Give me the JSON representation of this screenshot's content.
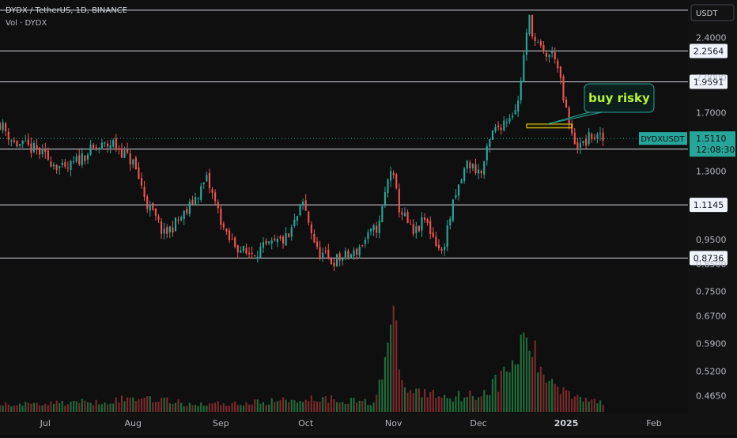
{
  "header": {
    "symbol_line": "DYDX / TetherUS, 1D, BINANCE",
    "volume_line": "Vol · DYDX"
  },
  "price_axis": {
    "currency": "USDT",
    "labels": [
      "2.4000",
      "2.0000",
      "1.7000",
      "1.3000",
      "0.9500",
      "0.8500",
      "0.7500",
      "0.6700",
      "0.5900",
      "0.5200",
      "0.4650"
    ]
  },
  "time_axis": {
    "labels": [
      "Jul",
      "Aug",
      "Sep",
      "Oct",
      "Nov",
      "Dec",
      "2025",
      "Feb"
    ]
  },
  "chart_data": {
    "type": "candlestick",
    "title": "DYDX / TetherUS, 1D, BINANCE",
    "y_scale": "log",
    "ylim": [
      0.43,
      2.85
    ],
    "x_range": [
      "2024-06-15",
      "2025-02-13"
    ],
    "horizontal_levels": [
      {
        "label": "2.2564",
        "value": 2.2564
      },
      {
        "label": "1.9591",
        "value": 1.9591
      },
      {
        "label": "1.4396",
        "value": 1.4396
      },
      {
        "label": "1.1145",
        "value": 1.1145
      },
      {
        "label": "0.8736",
        "value": 0.8736
      }
    ],
    "top_level_value": 2.72,
    "current_price": {
      "symbol": "DYDXUSDT",
      "value": "1.5110",
      "countdown": "12:08:30",
      "numeric": 1.511
    },
    "annotation": {
      "text": "buy risky",
      "zone_low": 1.586,
      "zone_high": 1.614,
      "zone_start": "2024-12-18",
      "zone_end": "2025-01-03"
    },
    "volume_scale_max": 100,
    "candle_anchors": [
      {
        "date": "2024-06-15",
        "close": 1.62
      },
      {
        "date": "2024-06-20",
        "close": 1.48
      },
      {
        "date": "2024-06-28",
        "close": 1.43
      },
      {
        "date": "2024-07-08",
        "close": 1.3
      },
      {
        "date": "2024-07-16",
        "close": 1.42
      },
      {
        "date": "2024-07-25",
        "close": 1.48
      },
      {
        "date": "2024-08-01",
        "close": 1.35
      },
      {
        "date": "2024-08-06",
        "close": 1.12
      },
      {
        "date": "2024-08-12",
        "close": 0.97
      },
      {
        "date": "2024-08-20",
        "close": 1.08
      },
      {
        "date": "2024-08-27",
        "close": 1.25
      },
      {
        "date": "2024-09-03",
        "close": 0.96
      },
      {
        "date": "2024-09-10",
        "close": 0.89
      },
      {
        "date": "2024-09-18",
        "close": 0.92
      },
      {
        "date": "2024-09-25",
        "close": 0.96
      },
      {
        "date": "2024-09-30",
        "close": 1.12
      },
      {
        "date": "2024-10-05",
        "close": 0.9
      },
      {
        "date": "2024-10-10",
        "close": 0.86
      },
      {
        "date": "2024-10-18",
        "close": 0.89
      },
      {
        "date": "2024-10-27",
        "close": 1.02
      },
      {
        "date": "2024-10-31",
        "close": 1.32
      },
      {
        "date": "2024-11-03",
        "close": 1.1
      },
      {
        "date": "2024-11-08",
        "close": 0.97
      },
      {
        "date": "2024-11-12",
        "close": 1.04
      },
      {
        "date": "2024-11-18",
        "close": 0.89
      },
      {
        "date": "2024-11-22",
        "close": 1.11
      },
      {
        "date": "2024-11-27",
        "close": 1.35
      },
      {
        "date": "2024-12-02",
        "close": 1.29
      },
      {
        "date": "2024-12-06",
        "close": 1.55
      },
      {
        "date": "2024-12-12",
        "close": 1.68
      },
      {
        "date": "2024-12-15",
        "close": 1.78
      },
      {
        "date": "2024-12-19",
        "close": 2.62
      },
      {
        "date": "2024-12-21",
        "close": 2.35
      },
      {
        "date": "2024-12-24",
        "close": 2.22
      },
      {
        "date": "2024-12-28",
        "close": 2.22
      },
      {
        "date": "2024-12-31",
        "close": 1.8
      },
      {
        "date": "2025-01-03",
        "close": 1.52
      },
      {
        "date": "2025-01-06",
        "close": 1.45
      },
      {
        "date": "2025-01-10",
        "close": 1.53
      },
      {
        "date": "2025-01-14",
        "close": 1.5
      }
    ],
    "volume_anchors": [
      {
        "date": "2024-06-15",
        "volume": 8
      },
      {
        "date": "2024-07-01",
        "volume": 10
      },
      {
        "date": "2024-07-20",
        "volume": 12
      },
      {
        "date": "2024-08-06",
        "volume": 17
      },
      {
        "date": "2024-08-20",
        "volume": 9
      },
      {
        "date": "2024-09-10",
        "volume": 10
      },
      {
        "date": "2024-10-05",
        "volume": 16
      },
      {
        "date": "2024-10-25",
        "volume": 11
      },
      {
        "date": "2024-11-01",
        "volume": 95
      },
      {
        "date": "2024-11-05",
        "volume": 25
      },
      {
        "date": "2024-11-20",
        "volume": 18
      },
      {
        "date": "2024-12-02",
        "volume": 20
      },
      {
        "date": "2024-12-10",
        "volume": 40
      },
      {
        "date": "2024-12-19",
        "volume": 86
      },
      {
        "date": "2024-12-22",
        "volume": 48
      },
      {
        "date": "2025-01-01",
        "volume": 24
      },
      {
        "date": "2025-01-14",
        "volume": 9
      }
    ]
  }
}
